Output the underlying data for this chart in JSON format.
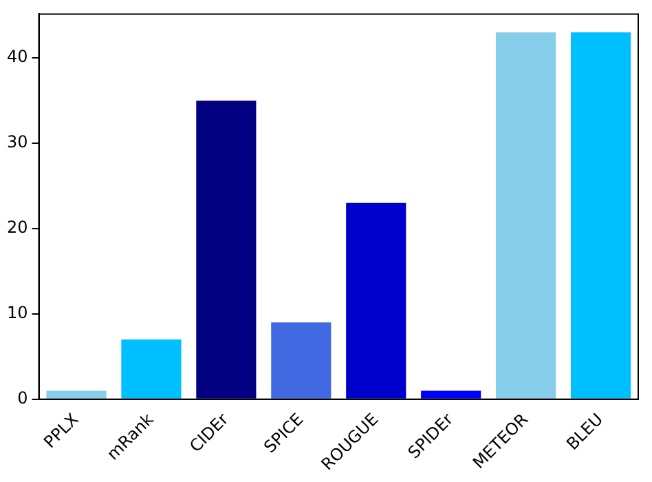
{
  "chart_data": {
    "type": "bar",
    "categories": [
      "PPLX",
      "mRank",
      "CIDEr",
      "SPICE",
      "ROUGUE",
      "SPIDEr",
      "METEOR",
      "BLEU"
    ],
    "values": [
      1,
      7,
      35,
      9,
      23,
      1,
      43,
      43
    ],
    "colors": [
      "#87ceeb",
      "#00bfff",
      "#000080",
      "#4169e1",
      "#0000cd",
      "#0000ff",
      "#87ceeb",
      "#00bfff"
    ],
    "ylim": [
      0,
      45.15
    ],
    "yticks": [
      0,
      10,
      20,
      30,
      40
    ],
    "grid": false,
    "legend": false
  }
}
